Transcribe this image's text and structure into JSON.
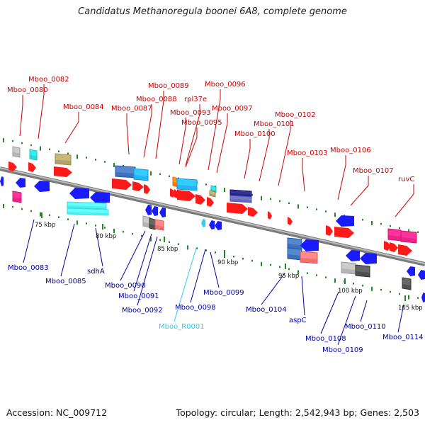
{
  "title": "Candidatus Methanoregula boonei 6A8, complete genome",
  "footer": {
    "accession": "Accession: NC_009712",
    "topology": "Topology: circular; Length: 2,542,943 bp; Genes: 2,503"
  },
  "colors": {
    "label_top": "#cc0000",
    "label_bottom": "#000099",
    "label_rna": "#33ccee",
    "backbone": "#999999",
    "tick_dot": "#228822"
  },
  "ticks": [
    "75 kbp",
    "80 kbp",
    "85 kbp",
    "90 kbp",
    "95 kbp",
    "100 kbp",
    "105 kbp"
  ],
  "top_labels": [
    "Mboo_0080",
    "Mboo_0082",
    "Mboo_0084",
    "Mboo_0087",
    "Mboo_0088",
    "Mboo_0089",
    "Mboo_0093",
    "rpl37e",
    "Mboo_0095",
    "Mboo_0096",
    "Mboo_0097",
    "Mboo_0100",
    "Mboo_0101",
    "Mboo_0102",
    "Mboo_0103",
    "Mboo_0106",
    "Mboo_0107",
    "ruvC"
  ],
  "bottom_labels": [
    "Mboo_0083",
    "Mboo_0085",
    "sdhA",
    "Mboo_0090",
    "Mboo_0091",
    "Mboo_0092",
    "Mboo_R0001",
    "Mboo_0098",
    "Mboo_0099",
    "Mboo_0104",
    "aspC",
    "Mboo_0108",
    "Mboo_0109",
    "Mboo_0110",
    "Mboo_0114"
  ]
}
